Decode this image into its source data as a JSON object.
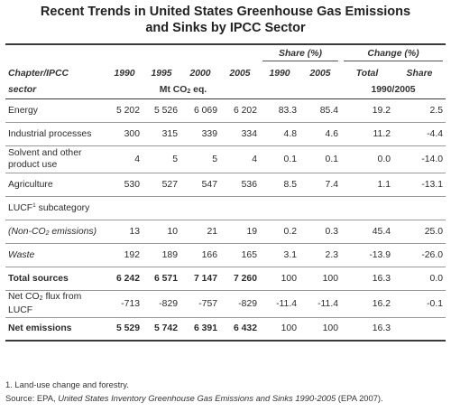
{
  "title_line1": "Recent Trends in United States Greenhouse Gas Emissions",
  "title_line2": "and Sinks by IPCC Sector",
  "header": {
    "chapter_line1": "Chapter/IPCC",
    "chapter_line2": "sector",
    "years": [
      "1990",
      "1995",
      "2000",
      "2005"
    ],
    "share_label": "Share (%)",
    "share_years": [
      "1990",
      "2005"
    ],
    "change_label": "Change (%)",
    "change_total": "Total",
    "change_share": "Share",
    "unit": "Mt CO",
    "unit_sub": "2",
    "unit_suffix": " eq.",
    "change_period": "1990/2005"
  },
  "rows": [
    {
      "label": "Energy",
      "values": [
        "5 202",
        "5 526",
        "6 069",
        "6 202",
        "83.3",
        "85.4",
        "19.2",
        "2.5"
      ]
    },
    {
      "label": "Industrial processes",
      "values": [
        "300",
        "315",
        "339",
        "334",
        "4.8",
        "4.6",
        "11.2",
        "-4.4"
      ]
    },
    {
      "label1": "Solvent and other",
      "label2": "product use",
      "values": [
        "4",
        "5",
        "5",
        "4",
        "0.1",
        "0.1",
        "0.0",
        "-14.0"
      ]
    },
    {
      "label": "Agriculture",
      "values": [
        "530",
        "527",
        "547",
        "536",
        "8.5",
        "7.4",
        "1.1",
        "-13.1"
      ]
    },
    {
      "label_pre": "LUCF",
      "label_sup": "1",
      "label_post": " subcategory"
    },
    {
      "label_pre": "(Non-CO",
      "label_sub": "2",
      "label_post": " emissions)",
      "values": [
        "13",
        "10",
        "21",
        "19",
        "0.2",
        "0.3",
        "45.4",
        "25.0"
      ]
    },
    {
      "label": "Waste",
      "values": [
        "192",
        "189",
        "166",
        "165",
        "3.1",
        "2.3",
        "-13.9",
        "-26.0"
      ]
    },
    {
      "label": "Total sources",
      "values": [
        "6 242",
        "6 571",
        "7 147",
        "7 260",
        "100",
        "100",
        "16.3",
        "0.0"
      ]
    },
    {
      "label_pre": "Net CO",
      "label_sub": "2",
      "label_post": " flux from",
      "label2": "LUCF",
      "values": [
        "-713",
        "-829",
        "-757",
        "-829",
        "-11.4",
        "-11.4",
        "16.2",
        "-0.1"
      ]
    },
    {
      "label": "Net emissions",
      "values": [
        "5 529",
        "5 742",
        "6 391",
        "6 432",
        "100",
        "100",
        "16.3",
        ""
      ]
    }
  ],
  "footnote": "1. Land-use change and forestry.",
  "source_prefix": "Source: EPA, ",
  "source_title": "United States Inventory Greenhouse Gas Emissions and Sinks 1990-2005",
  "source_suffix": " (EPA 2007)."
}
